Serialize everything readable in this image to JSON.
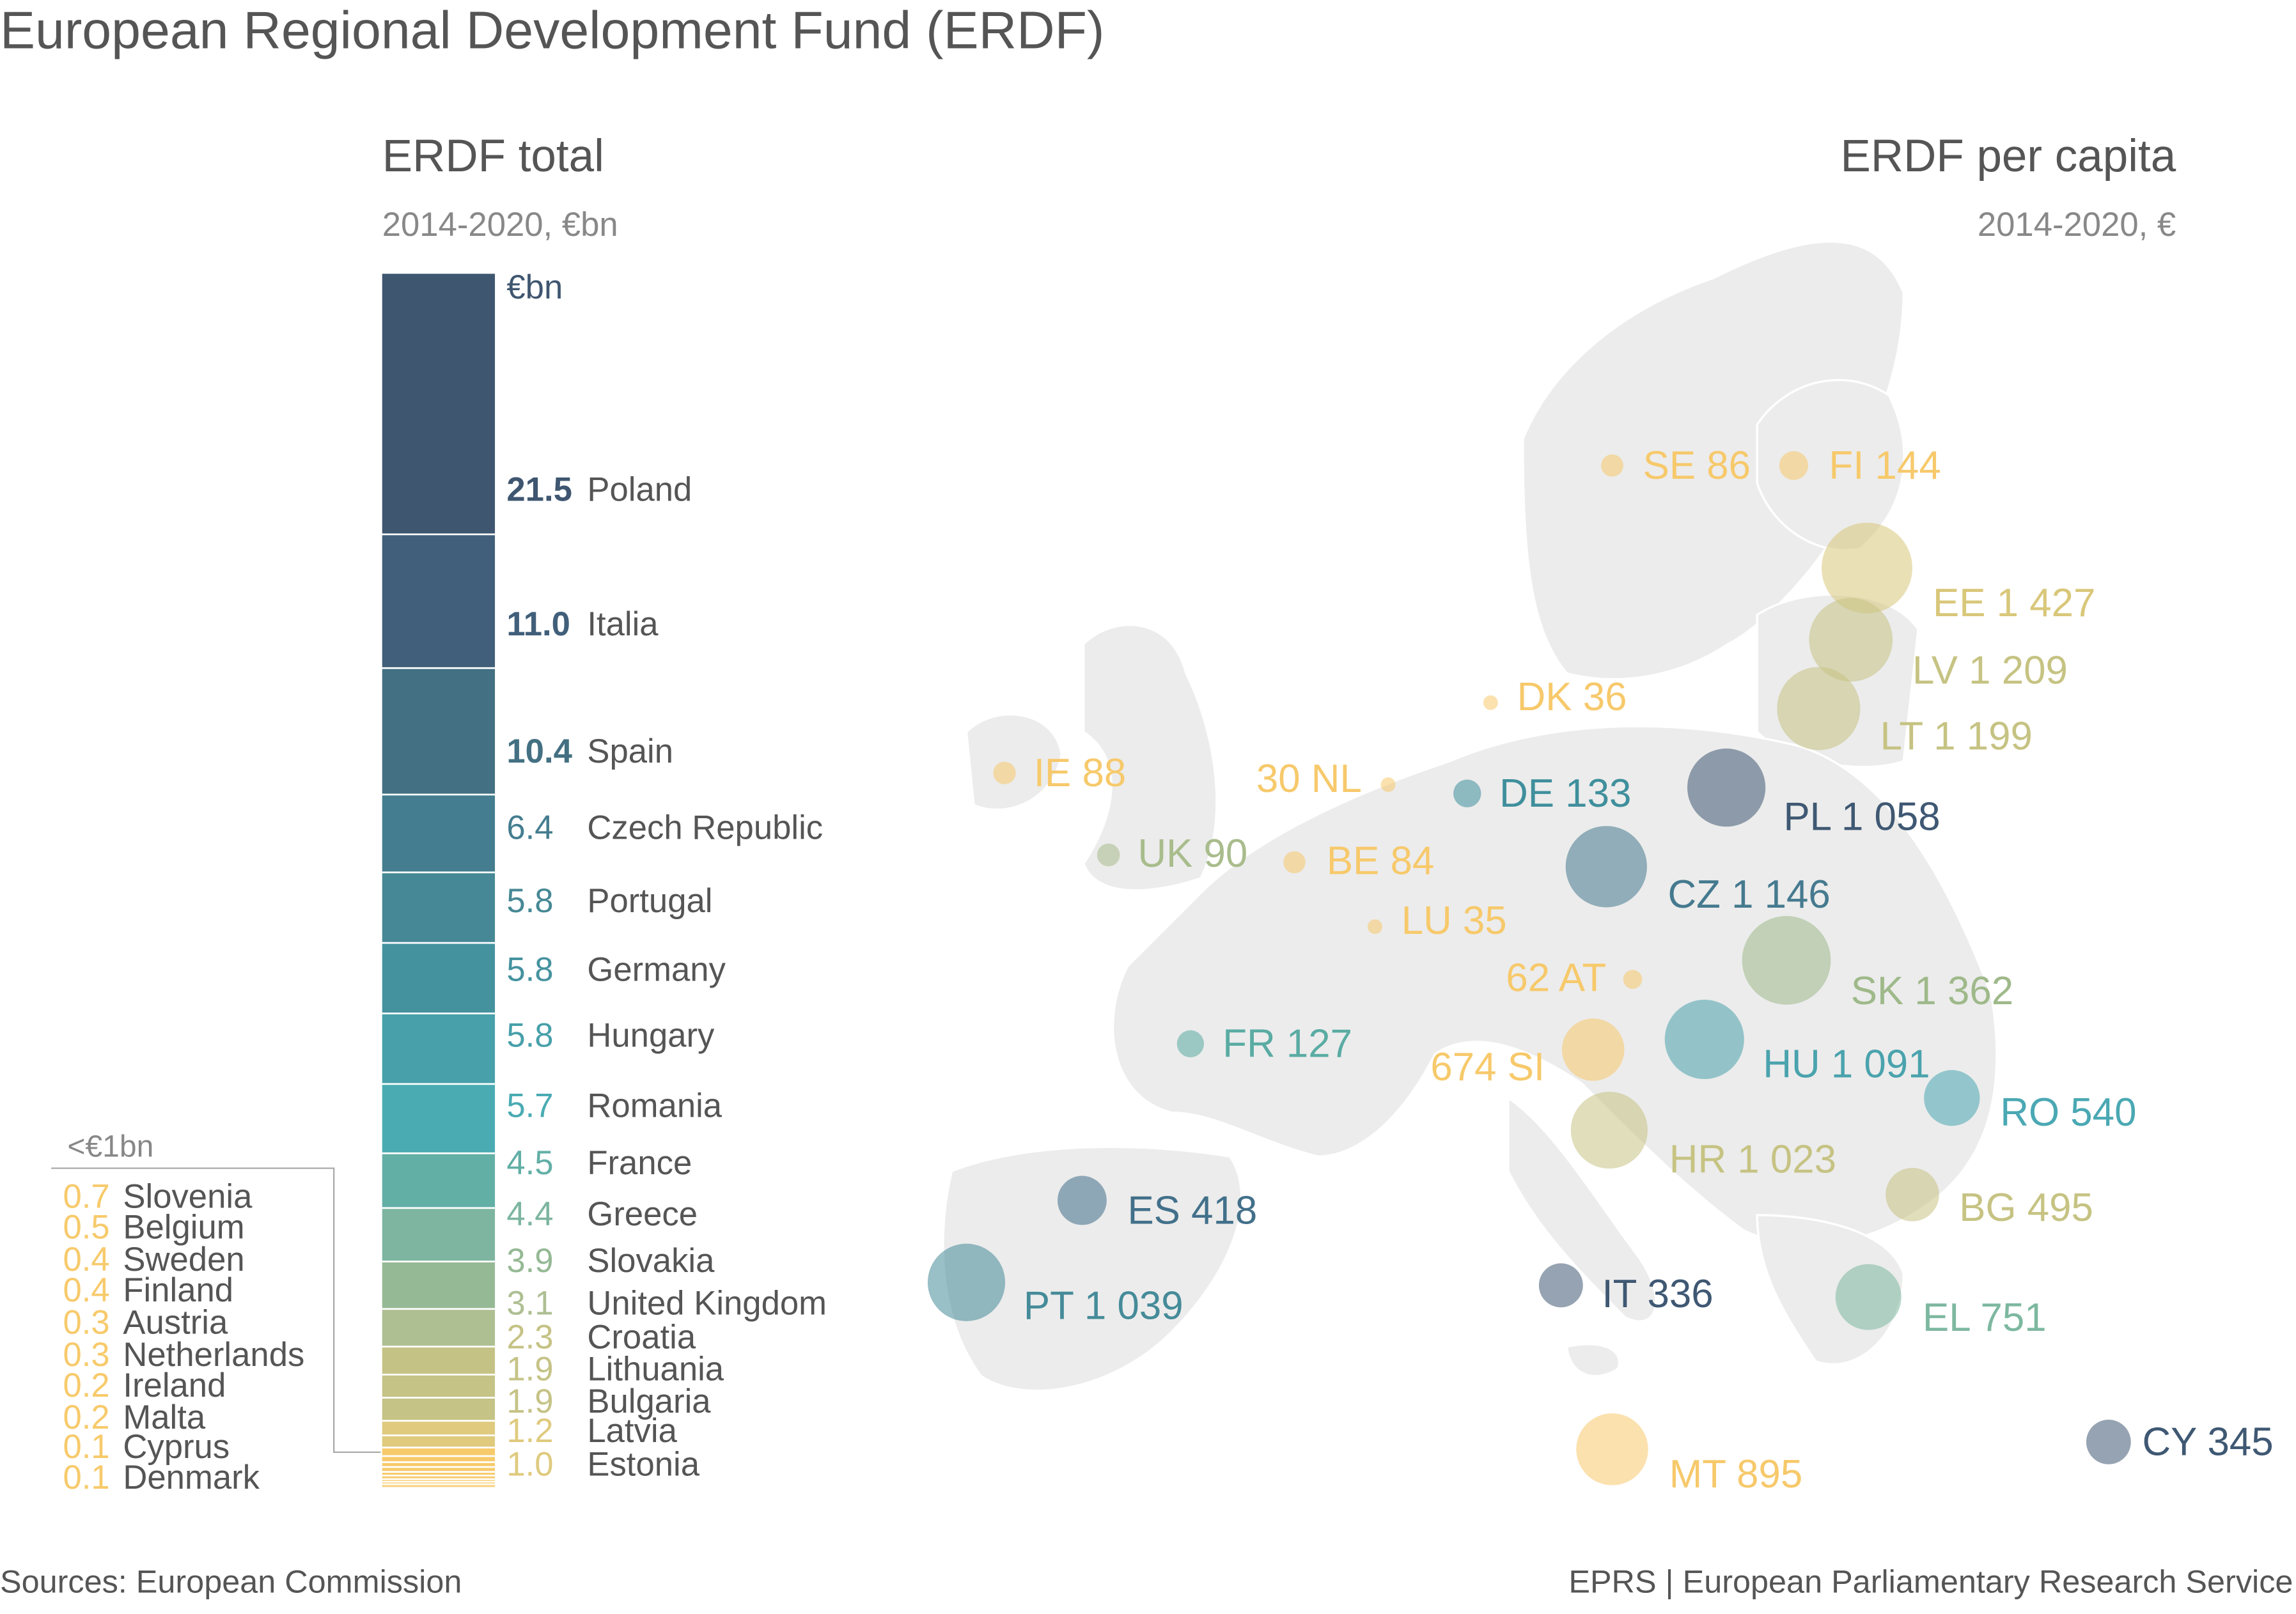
{
  "title": "European Regional Development Fund (ERDF)",
  "left_panel": {
    "title": "ERDF total",
    "subtitle": "2014-2020, €bn",
    "unit_label": "€bn",
    "small_group_label": "<€1bn"
  },
  "right_panel": {
    "title": "ERDF per capita",
    "subtitle": "2014-2020, €"
  },
  "footer": {
    "source": "Sources: European Commission",
    "credit": "EPRS | European Parliamentary Research Service"
  },
  "chart_data": [
    {
      "type": "bar",
      "subtype": "stacked-single",
      "title": "ERDF total",
      "unit": "€bn",
      "categories": [
        "Poland",
        "Italia",
        "Spain",
        "Czech Republic",
        "Portugal",
        "Germany",
        "Hungary",
        "Romania",
        "France",
        "Greece",
        "Slovakia",
        "United Kingdom",
        "Croatia",
        "Lithuania",
        "Bulgaria",
        "Latvia",
        "Estonia",
        "Slovenia",
        "Belgium",
        "Sweden",
        "Finland",
        "Austria",
        "Netherlands",
        "Ireland",
        "Malta",
        "Cyprus",
        "Denmark"
      ],
      "values": [
        21.5,
        11.0,
        10.4,
        6.4,
        5.8,
        5.8,
        5.8,
        5.7,
        4.5,
        4.4,
        3.9,
        3.1,
        2.3,
        1.9,
        1.9,
        1.2,
        1.0,
        0.7,
        0.5,
        0.4,
        0.4,
        0.3,
        0.3,
        0.2,
        0.2,
        0.1,
        0.1
      ],
      "value_labels": [
        "21.5",
        "11.0",
        "10.4",
        "6.4",
        "5.8",
        "5.8",
        "5.8",
        "5.7",
        "4.5",
        "4.4",
        "3.9",
        "3.1",
        "2.3",
        "1.9",
        "1.9",
        "1.2",
        "1.0",
        "0.7",
        "0.5",
        "0.4",
        "0.4",
        "0.3",
        "0.3",
        "0.2",
        "0.2",
        "0.1",
        "0.1"
      ],
      "colors": [
        "#3f5670",
        "#415f7a",
        "#437082",
        "#447d8f",
        "#468895",
        "#45929f",
        "#47a0aa",
        "#4aabb3",
        "#62afa6",
        "#7db5a0",
        "#95b995",
        "#aebf92",
        "#c5c285",
        "#c5c386",
        "#c5c386",
        "#dfca7e",
        "#dfca7e",
        "#f7ca6b",
        "#f7ca6b",
        "#f7ca6b",
        "#f7ca6b",
        "#f7ca6b",
        "#f7ca6b",
        "#f7ca6b",
        "#f7ca6b",
        "#f7ca6b",
        "#f7ca6b"
      ]
    },
    {
      "type": "scatter",
      "subtype": "bubble-map",
      "title": "ERDF per capita",
      "unit": "€",
      "points": [
        {
          "code": "SE",
          "value": 86,
          "label": "86",
          "color": "#f7c96b"
        },
        {
          "code": "FI",
          "value": 144,
          "label": "144",
          "color": "#f7c96b"
        },
        {
          "code": "EE",
          "value": 1427,
          "label": "1 427",
          "color": "#d9c77a"
        },
        {
          "code": "LV",
          "value": 1209,
          "label": "1 209",
          "color": "#c6c383"
        },
        {
          "code": "LT",
          "value": 1199,
          "label": "1 199",
          "color": "#c6c383"
        },
        {
          "code": "DK",
          "value": 36,
          "label": "36",
          "color": "#f7c96b"
        },
        {
          "code": "IE",
          "value": 88,
          "label": "88",
          "color": "#f7c96b"
        },
        {
          "code": "NL",
          "value": 30,
          "label": "30",
          "color": "#f7c96b"
        },
        {
          "code": "DE",
          "value": 133,
          "label": "133",
          "color": "#3f8f9c"
        },
        {
          "code": "PL",
          "value": 1058,
          "label": "1 058",
          "color": "#3f5873"
        },
        {
          "code": "UK",
          "value": 90,
          "label": "90",
          "color": "#a9bc8c"
        },
        {
          "code": "BE",
          "value": 84,
          "label": "84",
          "color": "#f7c96b"
        },
        {
          "code": "CZ",
          "value": 1146,
          "label": "1 146",
          "color": "#457a8f"
        },
        {
          "code": "LU",
          "value": 35,
          "label": "35",
          "color": "#f7c96b"
        },
        {
          "code": "AT",
          "value": 62,
          "label": "62",
          "color": "#f7c96b"
        },
        {
          "code": "SK",
          "value": 1362,
          "label": "1 362",
          "color": "#9fb98a"
        },
        {
          "code": "FR",
          "value": 127,
          "label": "127",
          "color": "#5aaca3"
        },
        {
          "code": "SI",
          "value": 674,
          "label": "674",
          "color": "#f7c96b"
        },
        {
          "code": "HU",
          "value": 1091,
          "label": "1 091",
          "color": "#4aa3ad"
        },
        {
          "code": "RO",
          "value": 540,
          "label": "540",
          "color": "#4aa8b3"
        },
        {
          "code": "HR",
          "value": 1023,
          "label": "1 023",
          "color": "#c6c383"
        },
        {
          "code": "ES",
          "value": 418,
          "label": "418",
          "color": "#42708a"
        },
        {
          "code": "BG",
          "value": 495,
          "label": "495",
          "color": "#c6c383"
        },
        {
          "code": "PT",
          "value": 1039,
          "label": "1 039",
          "color": "#458b99"
        },
        {
          "code": "IT",
          "value": 336,
          "label": "336",
          "color": "#3f5873"
        },
        {
          "code": "EL",
          "value": 751,
          "label": "751",
          "color": "#7db8a0"
        },
        {
          "code": "MT",
          "value": 895,
          "label": "895",
          "color": "#f7c96b"
        },
        {
          "code": "CY",
          "value": 345,
          "label": "345",
          "color": "#3f5873"
        }
      ]
    }
  ]
}
